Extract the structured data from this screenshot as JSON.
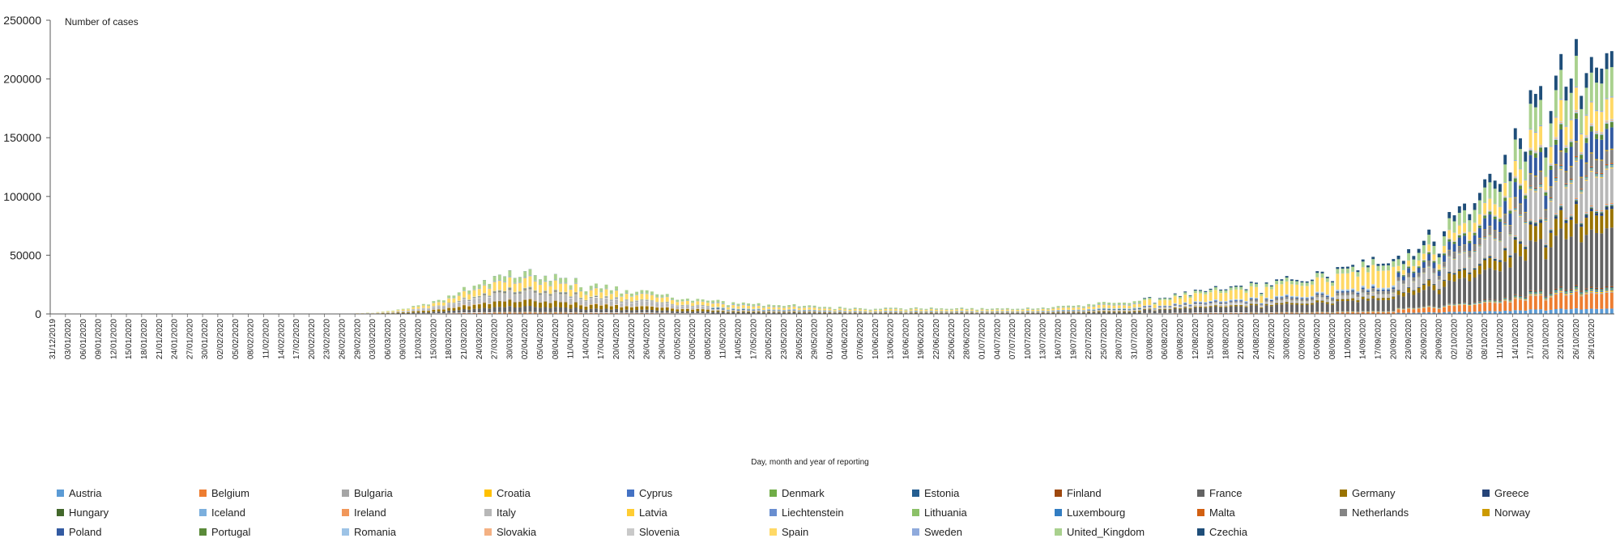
{
  "chart_data": {
    "type": "stacked-bar",
    "title": "",
    "ylabel": "Number of cases",
    "xlabel": "Day, month and year of reporting",
    "ylim": [
      0,
      250000
    ],
    "yticks": [
      0,
      50000,
      100000,
      150000,
      200000,
      250000
    ],
    "start_date": "2019-12-31",
    "end_date": "2020-11-02",
    "tick_every_days": 3,
    "x_tick_labels": [
      "31/12/2019",
      "03/01/2020",
      "06/01/2020",
      "09/01/2020",
      "12/01/2020",
      "15/01/2020",
      "18/01/2020",
      "21/01/2020",
      "24/01/2020",
      "27/01/2020",
      "30/01/2020",
      "02/02/2020",
      "05/02/2020",
      "08/02/2020",
      "11/02/2020",
      "14/02/2020",
      "17/02/2020",
      "20/02/2020",
      "23/02/2020",
      "26/02/2020",
      "29/02/2020",
      "03/03/2020",
      "06/03/2020",
      "09/03/2020",
      "12/03/2020",
      "15/03/2020",
      "18/03/2020",
      "21/03/2020",
      "24/03/2020",
      "27/03/2020",
      "30/03/2020",
      "02/04/2020",
      "05/04/2020",
      "08/04/2020",
      "11/04/2020",
      "14/04/2020",
      "17/04/2020",
      "20/04/2020",
      "23/04/2020",
      "26/04/2020",
      "29/04/2020",
      "02/05/2020",
      "05/05/2020",
      "08/05/2020",
      "11/05/2020",
      "14/05/2020",
      "17/05/2020",
      "20/05/2020",
      "23/05/2020",
      "26/05/2020",
      "29/05/2020",
      "01/06/2020",
      "04/06/2020",
      "07/06/2020",
      "10/06/2020",
      "13/06/2020",
      "16/06/2020",
      "19/06/2020",
      "22/06/2020",
      "25/06/2020",
      "28/06/2020",
      "01/07/2020",
      "04/07/2020",
      "07/07/2020",
      "10/07/2020",
      "13/07/2020",
      "16/07/2020",
      "19/07/2020",
      "22/07/2020",
      "25/07/2020",
      "28/07/2020",
      "31/07/2020",
      "03/08/2020",
      "06/08/2020",
      "09/08/2020",
      "12/08/2020",
      "15/08/2020",
      "18/08/2020",
      "21/08/2020",
      "24/08/2020",
      "27/08/2020",
      "30/08/2020",
      "02/09/2020",
      "05/09/2020",
      "08/09/2020",
      "11/09/2020",
      "14/09/2020",
      "17/09/2020",
      "20/09/2020",
      "23/09/2020",
      "26/09/2020",
      "29/09/2020",
      "02/10/2020",
      "05/10/2020",
      "08/10/2020",
      "11/10/2020",
      "14/10/2020",
      "17/10/2020",
      "20/10/2020",
      "23/10/2020",
      "26/10/2020",
      "29/10/2020"
    ],
    "totals_anchors": [
      [
        0,
        0
      ],
      [
        50,
        0
      ],
      [
        58,
        300
      ],
      [
        63,
        1200
      ],
      [
        68,
        3500
      ],
      [
        73,
        8000
      ],
      [
        78,
        15000
      ],
      [
        82,
        22000
      ],
      [
        86,
        30000
      ],
      [
        90,
        34000
      ],
      [
        95,
        33000
      ],
      [
        100,
        30000
      ],
      [
        105,
        25000
      ],
      [
        110,
        22000
      ],
      [
        115,
        20000
      ],
      [
        120,
        16000
      ],
      [
        125,
        13000
      ],
      [
        130,
        11000
      ],
      [
        135,
        9500
      ],
      [
        140,
        8500
      ],
      [
        145,
        7500
      ],
      [
        150,
        6500
      ],
      [
        155,
        5500
      ],
      [
        160,
        5000
      ],
      [
        165,
        5000
      ],
      [
        170,
        5000
      ],
      [
        175,
        4800
      ],
      [
        180,
        4700
      ],
      [
        185,
        4500
      ],
      [
        190,
        4800
      ],
      [
        195,
        5500
      ],
      [
        200,
        7000
      ],
      [
        205,
        8500
      ],
      [
        210,
        10000
      ],
      [
        215,
        12000
      ],
      [
        220,
        15000
      ],
      [
        225,
        18000
      ],
      [
        230,
        22000
      ],
      [
        235,
        24000
      ],
      [
        240,
        26000
      ],
      [
        245,
        30000
      ],
      [
        250,
        33000
      ],
      [
        255,
        38000
      ],
      [
        260,
        45000
      ],
      [
        265,
        52000
      ],
      [
        270,
        60000
      ],
      [
        275,
        80000
      ],
      [
        280,
        100000
      ],
      [
        285,
        125000
      ],
      [
        290,
        160000
      ],
      [
        295,
        190000
      ],
      [
        300,
        205000
      ],
      [
        307,
        210000
      ]
    ],
    "series": [
      {
        "name": "Austria",
        "color": "#5b9bd5"
      },
      {
        "name": "Belgium",
        "color": "#ed7d31"
      },
      {
        "name": "Bulgaria",
        "color": "#a5a5a5"
      },
      {
        "name": "Croatia",
        "color": "#ffc000"
      },
      {
        "name": "Cyprus",
        "color": "#4472c4"
      },
      {
        "name": "Denmark",
        "color": "#70ad47"
      },
      {
        "name": "Estonia",
        "color": "#255e91"
      },
      {
        "name": "Finland",
        "color": "#9e480e"
      },
      {
        "name": "France",
        "color": "#636363"
      },
      {
        "name": "Germany",
        "color": "#997300"
      },
      {
        "name": "Greece",
        "color": "#264478"
      },
      {
        "name": "Hungary",
        "color": "#43682b"
      },
      {
        "name": "Iceland",
        "color": "#7cafdd"
      },
      {
        "name": "Ireland",
        "color": "#f1975a"
      },
      {
        "name": "Italy",
        "color": "#b7b7b7"
      },
      {
        "name": "Latvia",
        "color": "#ffcd33"
      },
      {
        "name": "Liechtenstein",
        "color": "#698ed0"
      },
      {
        "name": "Lithuania",
        "color": "#8cc168"
      },
      {
        "name": "Luxembourg",
        "color": "#327dc2"
      },
      {
        "name": "Malta",
        "color": "#d26012"
      },
      {
        "name": "Netherlands",
        "color": "#848484"
      },
      {
        "name": "Norway",
        "color": "#cc9a00"
      },
      {
        "name": "Poland",
        "color": "#335aa1"
      },
      {
        "name": "Portugal",
        "color": "#5a8a39"
      },
      {
        "name": "Romania",
        "color": "#9dc3e6"
      },
      {
        "name": "Slovakia",
        "color": "#f4b183"
      },
      {
        "name": "Slovenia",
        "color": "#c9c9c9"
      },
      {
        "name": "Spain",
        "color": "#ffd966"
      },
      {
        "name": "Sweden",
        "color": "#8faadc"
      },
      {
        "name": "United_Kingdom",
        "color": "#a9d18e"
      },
      {
        "name": "Czechia",
        "color": "#1f4e79"
      }
    ]
  }
}
